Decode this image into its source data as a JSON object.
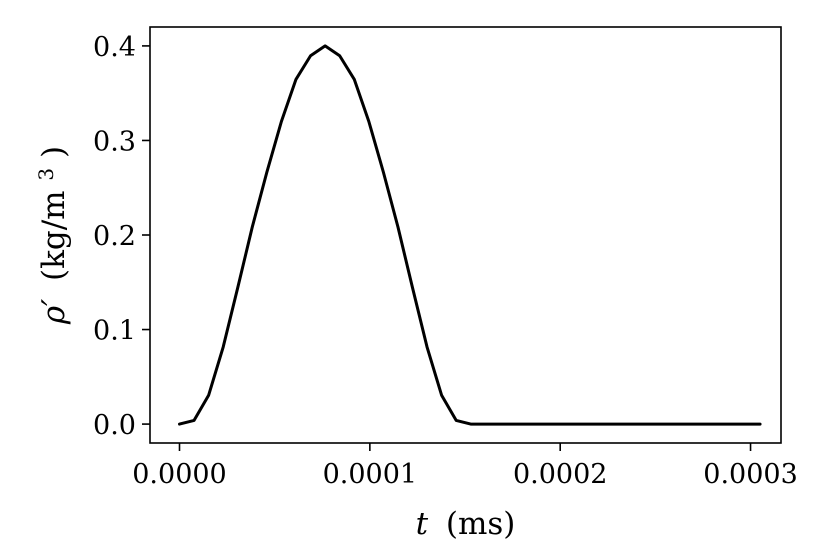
{
  "chart_data": {
    "type": "line",
    "title": "",
    "xlabel": {
      "var": "t",
      "unit": "(ms)"
    },
    "ylabel": {
      "var": "ρ′",
      "unit": "(kg/m",
      "sup": "3",
      "close": ")"
    },
    "xlim": [
      -1.55e-05,
      0.000316
    ],
    "ylim": [
      -0.02,
      0.42
    ],
    "xticks": [
      0.0,
      0.0001,
      0.0002,
      0.0003
    ],
    "xtick_labels": [
      "0.0000",
      "0.0001",
      "0.0002",
      "0.0003"
    ],
    "yticks": [
      0.0,
      0.1,
      0.2,
      0.3,
      0.4
    ],
    "ytick_labels": [
      "0.0",
      "0.1",
      "0.2",
      "0.3",
      "0.4"
    ],
    "grid": false,
    "legend": "none",
    "series": [
      {
        "color": "#000000",
        "x": [
          0.0,
          7.65e-06,
          1.53e-05,
          2.295e-05,
          3.06e-05,
          3.825e-05,
          4.59e-05,
          5.355e-05,
          6.12e-05,
          6.885e-05,
          7.65e-05,
          8.415e-05,
          9.18e-05,
          9.945e-05,
          0.0001071,
          0.00011475,
          0.0001224,
          0.00013005,
          0.0001377,
          0.00014535,
          0.000153,
          0.00018,
          0.00021,
          0.00024,
          0.00027,
          0.000305
        ],
        "y": [
          0.0,
          0.0039,
          0.0305,
          0.0815,
          0.1443,
          0.2086,
          0.2665,
          0.3202,
          0.3647,
          0.3896,
          0.4,
          0.3896,
          0.3647,
          0.3202,
          0.2665,
          0.2086,
          0.1443,
          0.0815,
          0.0305,
          0.0039,
          0.0,
          0.0,
          0.0,
          0.0,
          0.0,
          0.0
        ]
      }
    ]
  }
}
